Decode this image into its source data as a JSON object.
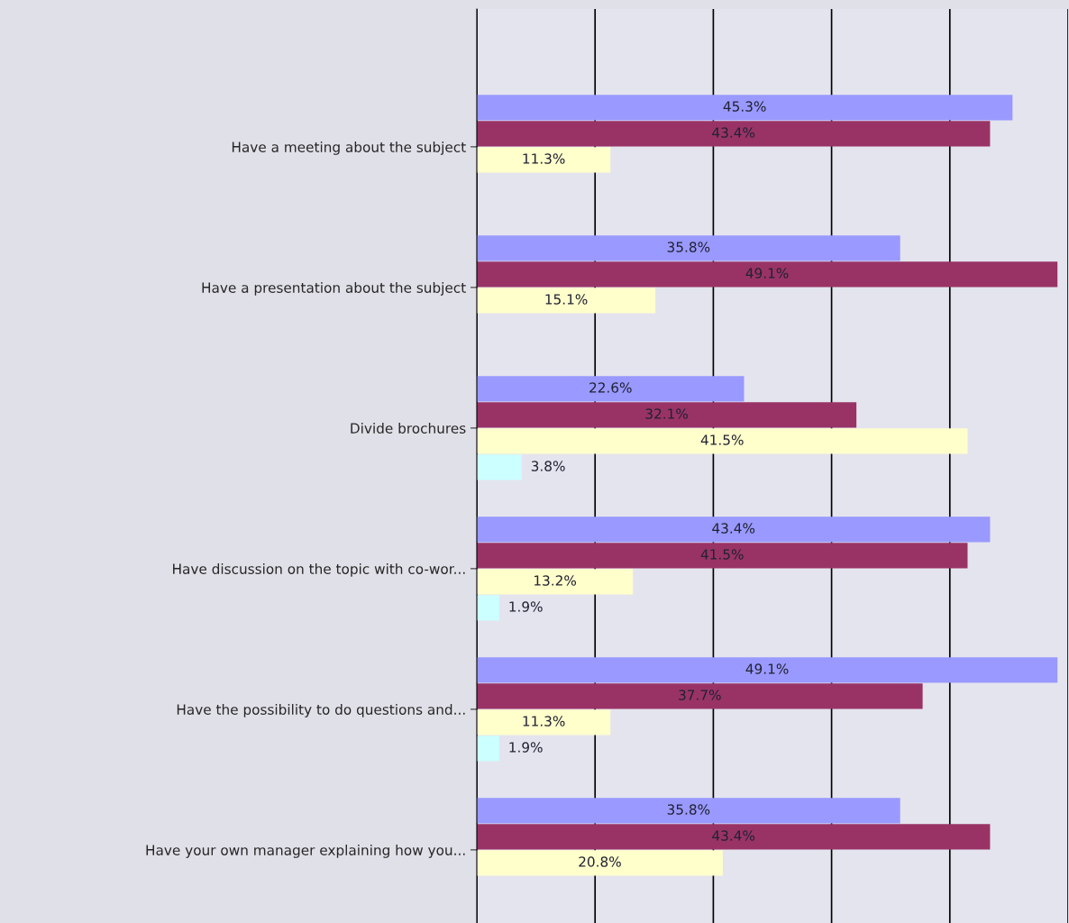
{
  "chart_data": {
    "type": "bar",
    "orientation": "horizontal",
    "categories": [
      "Have a meeting about the subject",
      "Have a presentation about the subject",
      "Divide brochures",
      "Have discussion on the topic with co-wor...",
      "Have the possibility to do questions and...",
      "Have your own manager explaining how you..."
    ],
    "series": [
      {
        "color": "#9999ff",
        "values": [
          45.3,
          35.8,
          22.6,
          43.4,
          49.1,
          35.8
        ],
        "value_labels": [
          "45.3%",
          "35.8%",
          "22.6%",
          "43.4%",
          "49.1%",
          "35.8%"
        ]
      },
      {
        "color": "#993366",
        "values": [
          43.4,
          49.1,
          32.1,
          41.5,
          37.7,
          43.4
        ],
        "value_labels": [
          "43.4%",
          "49.1%",
          "32.1%",
          "41.5%",
          "37.7%",
          "43.4%"
        ]
      },
      {
        "color": "#ffffcc",
        "values": [
          11.3,
          15.1,
          41.5,
          13.2,
          11.3,
          20.8
        ],
        "value_labels": [
          "11.3%",
          "15.1%",
          "41.5%",
          "13.2%",
          "11.3%",
          "20.8%"
        ]
      },
      {
        "color": "#ccffff",
        "values": [
          null,
          null,
          3.8,
          1.9,
          1.9,
          null
        ],
        "value_labels": [
          null,
          null,
          "3.8%",
          "1.9%",
          "1.9%",
          null
        ]
      }
    ],
    "xlim": [
      0,
      50
    ],
    "xticks": [
      {
        "value": 0,
        "label": null
      },
      {
        "value": 10,
        "label": null
      },
      {
        "value": 20,
        "label": null
      },
      {
        "value": 30,
        "label": null
      },
      {
        "value": 40,
        "label": null
      },
      {
        "value": 50,
        "label": null
      }
    ],
    "tick_labels": "y",
    "grid": "x",
    "legend": false
  }
}
